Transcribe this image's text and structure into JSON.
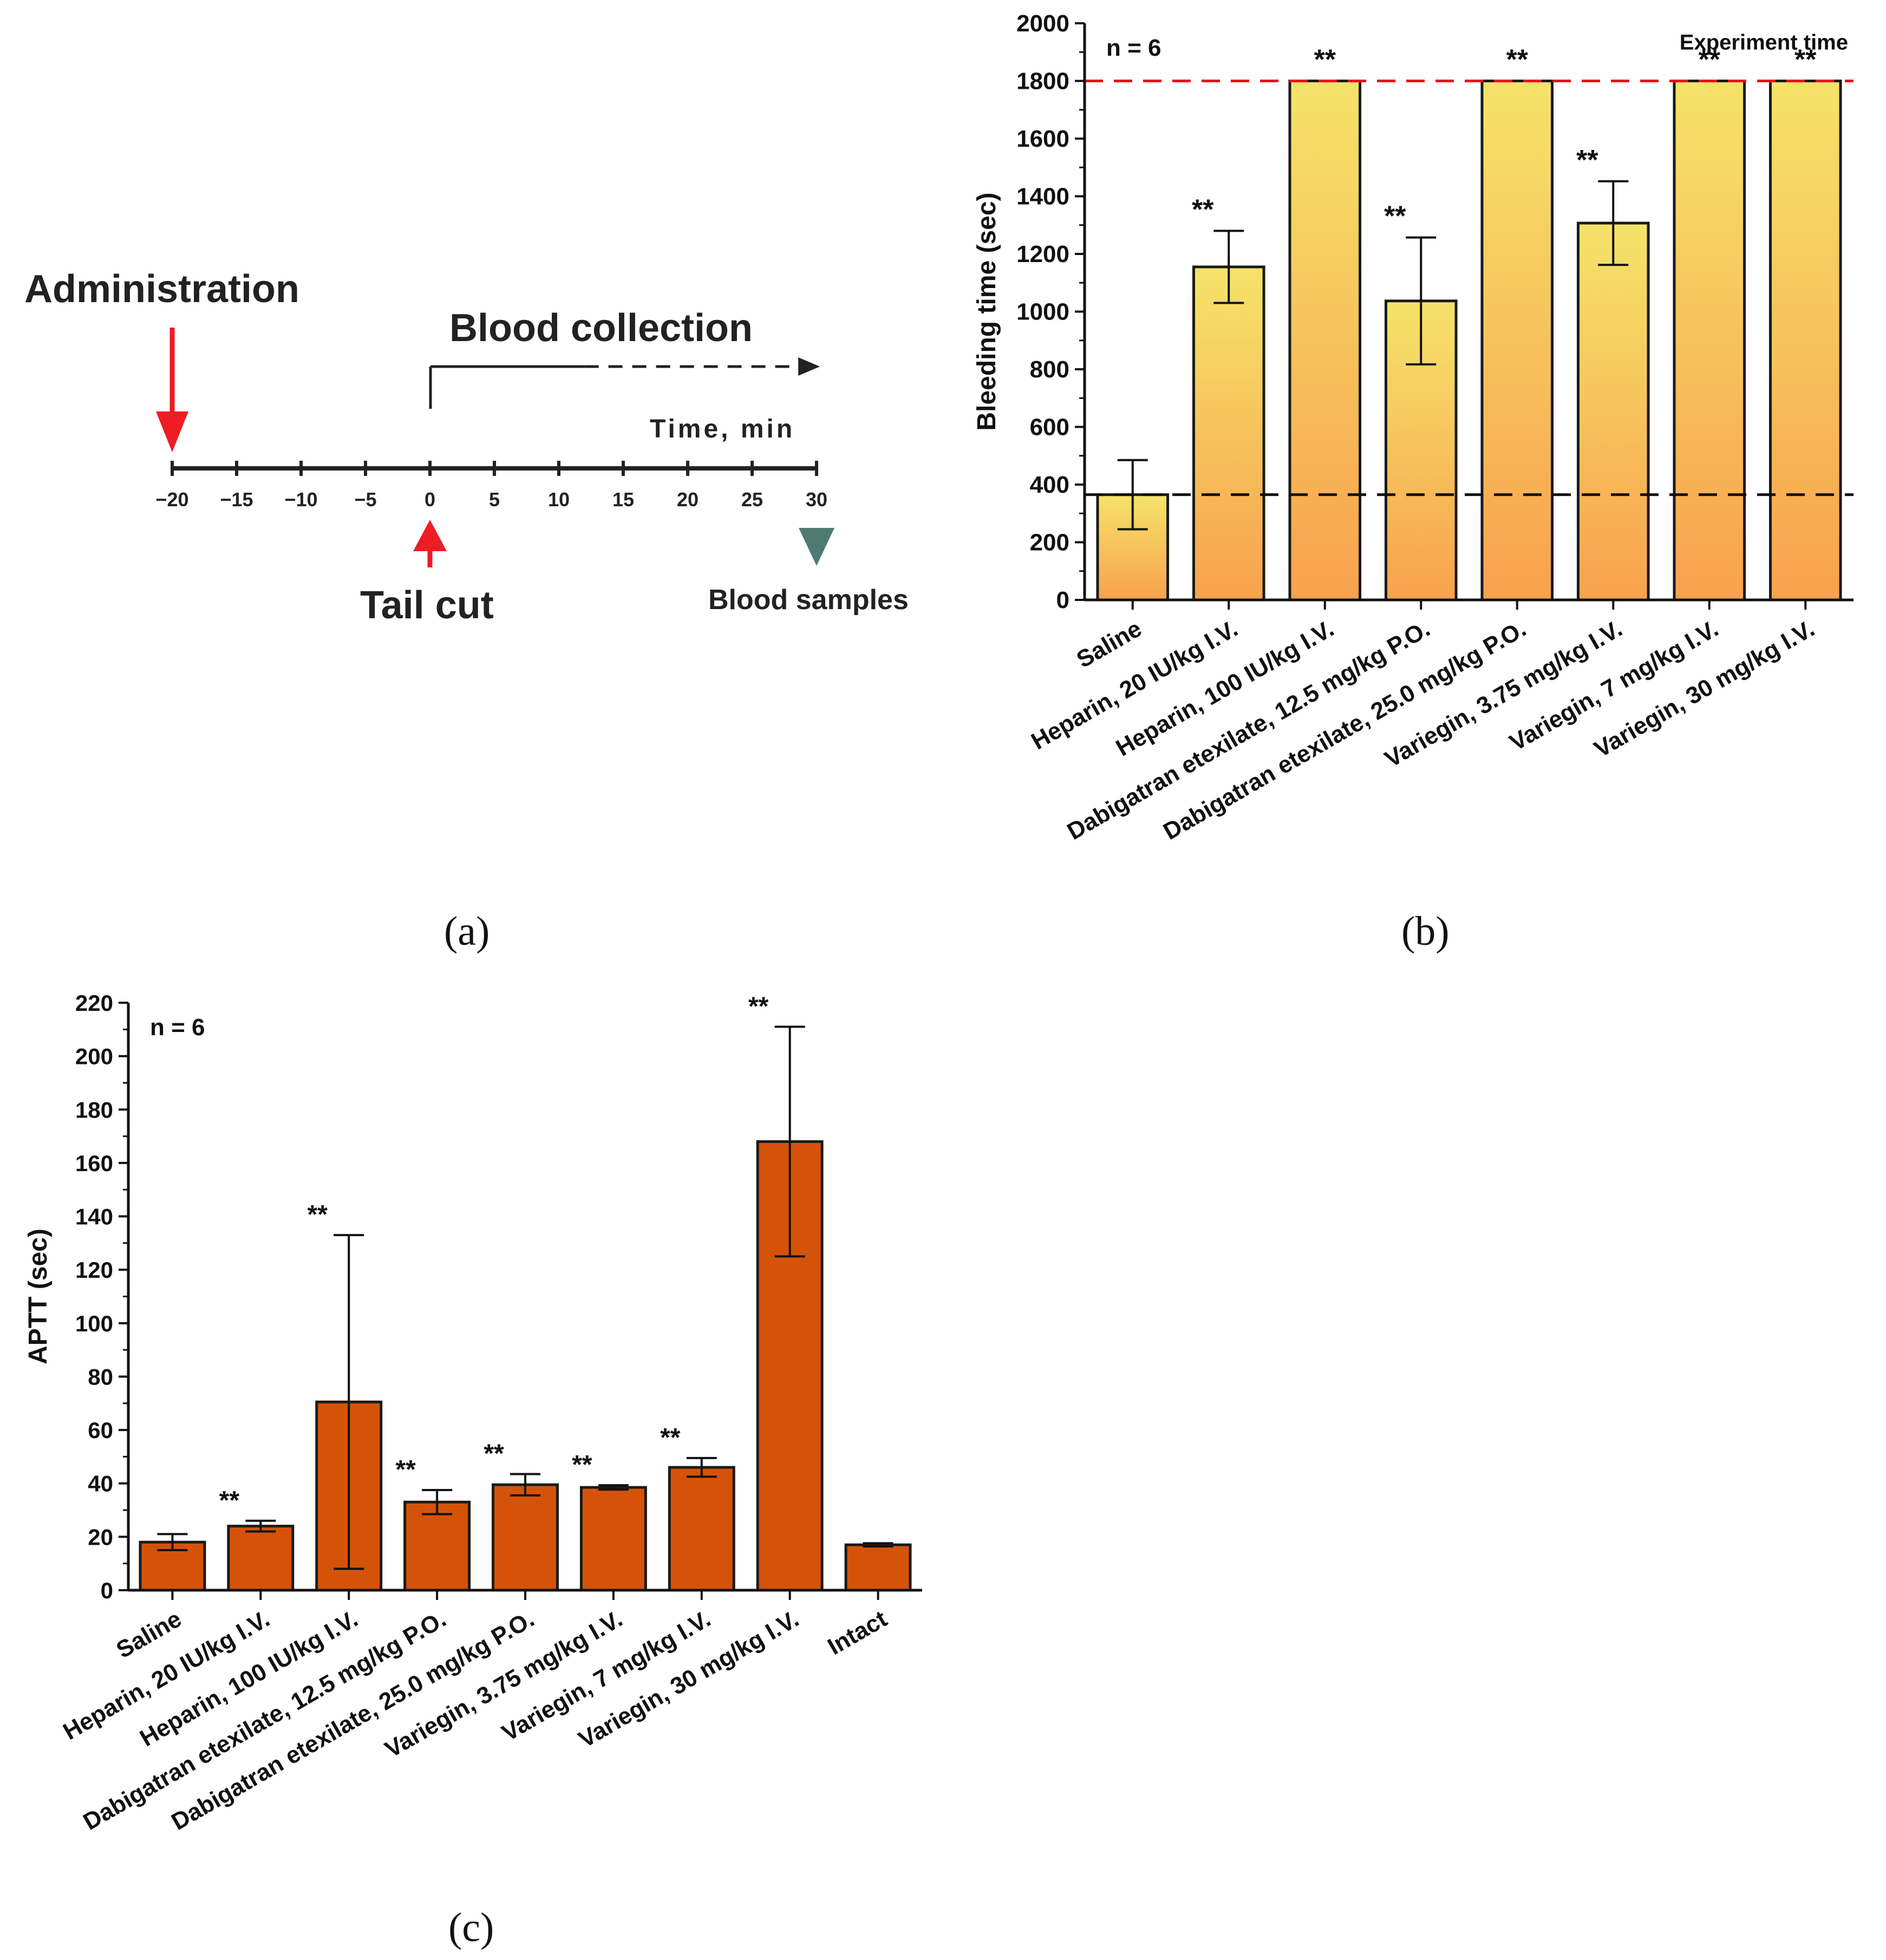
{
  "panel_a": {
    "caption": "(a)",
    "administration_label": "Administration",
    "blood_collection_label": "Blood collection",
    "time_axis_label": "Time, min",
    "tail_cut_label": "Tail cut",
    "blood_samples_label": "Blood samples",
    "timeline": {
      "min": -20,
      "max": 30,
      "ticks": [
        {
          "value": -20,
          "label": "−20"
        },
        {
          "value": -15,
          "label": "−15"
        },
        {
          "value": -10,
          "label": "−10"
        },
        {
          "value": -5,
          "label": "−5"
        },
        {
          "value": 0,
          "label": "0"
        },
        {
          "value": 5,
          "label": "5"
        },
        {
          "value": 10,
          "label": "10"
        },
        {
          "value": 15,
          "label": "15"
        },
        {
          "value": 20,
          "label": "20"
        },
        {
          "value": 25,
          "label": "25"
        },
        {
          "value": 30,
          "label": "30"
        }
      ],
      "administration_at": -20,
      "tail_cut_at": 0,
      "collection_start": 0,
      "collection_solid_end": 12,
      "collection_end": 29,
      "blood_samples_at": 30
    },
    "colors": {
      "administration": "#ee1c25",
      "tail_cut": "#ee1c25",
      "blood_samples": "#4e7a72",
      "axis": "#222222"
    }
  },
  "chart_data": [
    {
      "id": "b",
      "type": "bar",
      "caption": "(b)",
      "ylabel": "Bleeding time (sec)",
      "xlabel": "",
      "ylim": [
        0,
        2000
      ],
      "yticks": [
        0,
        200,
        400,
        600,
        800,
        1000,
        1200,
        1400,
        1600,
        1800,
        2000
      ],
      "n_label": "n = 6",
      "categories": [
        "Saline",
        "Heparin, 20 IU/kg I.V.",
        "Heparin, 100 IU/kg I.V.",
        "Dabigatran etexilate, 12.5 mg/kg P.O.",
        "Dabigatran etexilate, 25.0 mg/kg P.O.",
        "Variegin, 3.75 mg/kg I.V.",
        "Variegin, 7 mg/kg I.V.",
        "Variegin, 30 mg/kg I.V."
      ],
      "values": [
        365,
        1155,
        1800,
        1037,
        1800,
        1307,
        1800,
        1800
      ],
      "errors": [
        120,
        125,
        0,
        220,
        0,
        145,
        0,
        0
      ],
      "significance": [
        "",
        "**",
        "**",
        "**",
        "**",
        "**",
        "**",
        "**"
      ],
      "reference_lines": [
        {
          "value": 1800,
          "color": "#e8141c",
          "label": "Experiment time"
        },
        {
          "value": 365,
          "color": "#111111",
          "label": ""
        }
      ],
      "bar_gradient": {
        "top": "#f5e36a",
        "bottom": "#f8a24e"
      }
    },
    {
      "id": "c",
      "type": "bar",
      "caption": "(c)",
      "ylabel": "APTT (sec)",
      "xlabel": "",
      "ylim": [
        0,
        220
      ],
      "yticks": [
        0,
        20,
        40,
        60,
        80,
        100,
        120,
        140,
        160,
        180,
        200,
        220
      ],
      "n_label": "n = 6",
      "categories": [
        "Saline",
        "Heparin, 20 IU/kg I.V.",
        "Heparin, 100 IU/kg I.V.",
        "Dabigatran etexilate, 12.5 mg/kg P.O.",
        "Dabigatran etexilate, 25.0 mg/kg P.O.",
        "Variegin, 3.75 mg/kg I.V.",
        "Variegin, 7 mg/kg I.V.",
        "Variegin, 30 mg/kg I.V.",
        "Intact"
      ],
      "values": [
        18,
        24,
        70.5,
        33,
        39.5,
        38.5,
        46,
        168,
        17
      ],
      "errors": [
        3,
        2,
        62.5,
        4.5,
        4,
        0.8,
        3.5,
        43,
        0.6
      ],
      "significance": [
        "",
        "**",
        "**",
        "**",
        "**",
        "**",
        "**",
        "**",
        ""
      ],
      "bar_color": "#d45309"
    }
  ]
}
